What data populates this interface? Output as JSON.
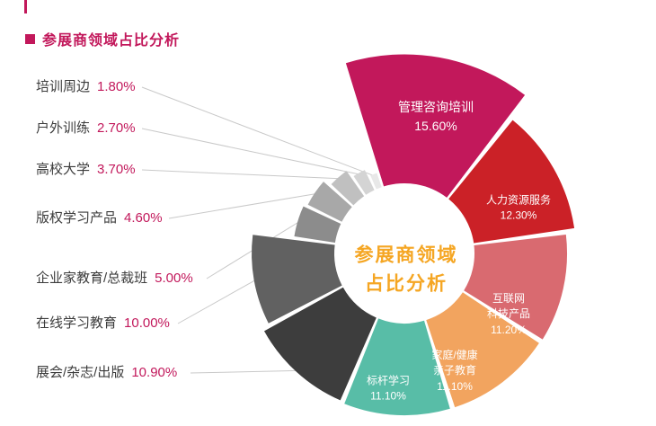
{
  "header": {
    "title": "参展商领域占比分析"
  },
  "chart_data": {
    "type": "pie",
    "variant": "donut-variable-radius",
    "title": "参展商领域占比分析",
    "center_label_lines": [
      "参展商领域",
      "占比分析"
    ],
    "start_angle": -18,
    "legend_position": "inside-and-left-callouts",
    "segments": [
      {
        "label": "管理咨询培训",
        "value": 15.6,
        "pct": "15.60%",
        "color": "#c2185b",
        "label_mode": "inside",
        "lines": [
          "管理咨询培训"
        ]
      },
      {
        "label": "人力资源服务",
        "value": 12.3,
        "pct": "12.30%",
        "color": "#cb2127",
        "label_mode": "inside",
        "lines": [
          "人力资源服务"
        ]
      },
      {
        "label": "互联网科技产品",
        "value": 11.2,
        "pct": "11.20%",
        "color": "#d96a70",
        "label_mode": "inside",
        "lines": [
          "互联网",
          "科技产品"
        ]
      },
      {
        "label": "家庭/健康/亲子教育",
        "value": 11.1,
        "pct": "11.10%",
        "color": "#f2a45f",
        "label_mode": "inside",
        "lines": [
          "家庭/健康",
          "亲子教育"
        ]
      },
      {
        "label": "标杆学习",
        "value": 11.1,
        "pct": "11.10%",
        "color": "#58bda7",
        "label_mode": "inside",
        "lines": [
          "标杆学习"
        ]
      },
      {
        "label": "展会/杂志/出版",
        "value": 10.9,
        "pct": "10.90%",
        "color": "#3d3d3d",
        "label_mode": "callout"
      },
      {
        "label": "在线学习教育",
        "value": 10.0,
        "pct": "10.00%",
        "color": "#616161",
        "label_mode": "callout"
      },
      {
        "label": "企业家教育/总裁班",
        "value": 5.0,
        "pct": "5.00%",
        "color": "#8c8c8c",
        "label_mode": "callout"
      },
      {
        "label": "版权学习产品",
        "value": 4.6,
        "pct": "4.60%",
        "color": "#a8a8a8",
        "label_mode": "callout"
      },
      {
        "label": "高校大学",
        "value": 3.7,
        "pct": "3.70%",
        "color": "#c0c0c0",
        "label_mode": "callout"
      },
      {
        "label": "户外训练",
        "value": 2.7,
        "pct": "2.70%",
        "color": "#d4d4d4",
        "label_mode": "callout"
      },
      {
        "label": "培训周边",
        "value": 1.8,
        "pct": "1.80%",
        "color": "#e8e8e8",
        "label_mode": "callout"
      }
    ],
    "colors": {
      "accent": "#c2185b",
      "center_text": "#f5a623",
      "leader_line": "#c9c9c9",
      "callout_text": "#3c3c3c",
      "inside_text": "#ffffff"
    }
  }
}
